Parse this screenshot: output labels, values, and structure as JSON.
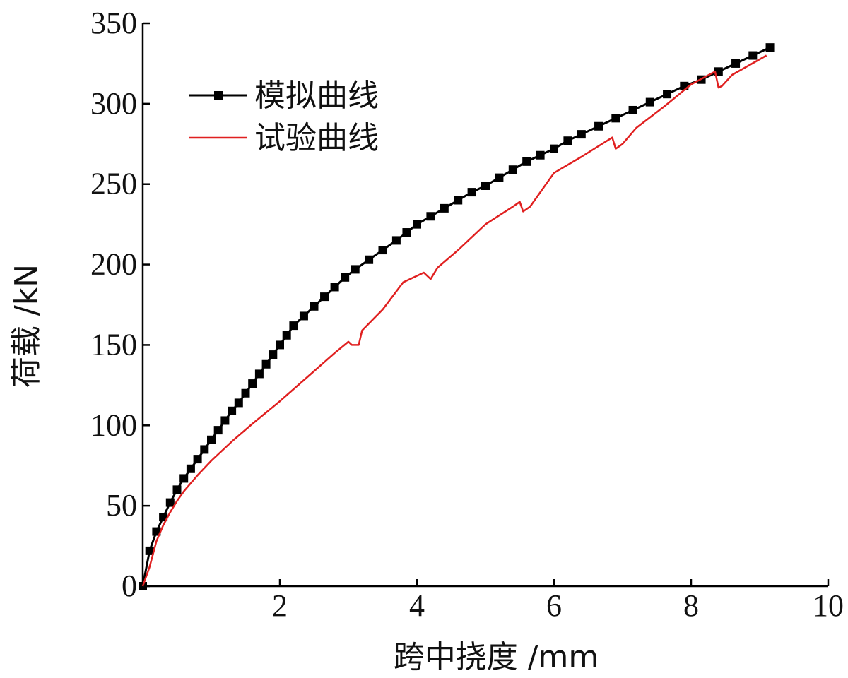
{
  "chart_data": {
    "type": "line",
    "title": "",
    "xlabel": "跨中挠度 /mm",
    "ylabel": "荷载 /kN",
    "xlim": [
      0,
      10
    ],
    "ylim": [
      0,
      350
    ],
    "xticks": [
      2,
      4,
      6,
      8,
      10
    ],
    "yticks": [
      0,
      50,
      100,
      150,
      200,
      250,
      300,
      350
    ],
    "legend_position": "top-left",
    "series": [
      {
        "name": "模拟曲线",
        "color": "#000000",
        "marker": "square",
        "x": [
          0.0,
          0.1,
          0.2,
          0.3,
          0.4,
          0.5,
          0.6,
          0.7,
          0.8,
          0.9,
          1.0,
          1.1,
          1.2,
          1.3,
          1.4,
          1.5,
          1.6,
          1.7,
          1.8,
          1.9,
          2.0,
          2.1,
          2.2,
          2.35,
          2.5,
          2.65,
          2.8,
          2.95,
          3.1,
          3.3,
          3.5,
          3.7,
          3.85,
          4.0,
          4.2,
          4.4,
          4.6,
          4.8,
          5.0,
          5.2,
          5.4,
          5.6,
          5.8,
          6.0,
          6.2,
          6.4,
          6.65,
          6.9,
          7.15,
          7.4,
          7.65,
          7.9,
          8.15,
          8.4,
          8.65,
          8.9,
          9.15
        ],
        "y": [
          0,
          22,
          34,
          43,
          52,
          60,
          67,
          73,
          79,
          85,
          91,
          97,
          103,
          109,
          114,
          120,
          126,
          132,
          138,
          144,
          150,
          156,
          162,
          168,
          174,
          180,
          186,
          192,
          197,
          203,
          209,
          215,
          220,
          225,
          230,
          235,
          240,
          245,
          249,
          254,
          259,
          264,
          268,
          272,
          277,
          281,
          286,
          291,
          296,
          301,
          306,
          311,
          315,
          320,
          325,
          330,
          335
        ]
      },
      {
        "name": "试验曲线",
        "color": "#e02020",
        "marker": "none",
        "x": [
          0.0,
          0.1,
          0.2,
          0.3,
          0.4,
          0.5,
          0.6,
          0.8,
          1.0,
          1.3,
          1.6,
          2.0,
          2.4,
          2.8,
          3.0,
          3.05,
          3.15,
          3.2,
          3.5,
          3.8,
          4.1,
          4.2,
          4.3,
          4.6,
          5.0,
          5.4,
          5.5,
          5.55,
          5.65,
          6.0,
          6.4,
          6.85,
          6.9,
          7.0,
          7.2,
          7.6,
          8.0,
          8.35,
          8.4,
          8.45,
          8.6,
          9.1
        ],
        "y": [
          0,
          12,
          28,
          38,
          46,
          53,
          59,
          69,
          78,
          90,
          101,
          115,
          130,
          145,
          152,
          150,
          150,
          159,
          172,
          189,
          195,
          191,
          198,
          209,
          225,
          236,
          239,
          233,
          236,
          257,
          267,
          279,
          272,
          275,
          285,
          298,
          312,
          320,
          310,
          311,
          318,
          330
        ]
      }
    ]
  }
}
